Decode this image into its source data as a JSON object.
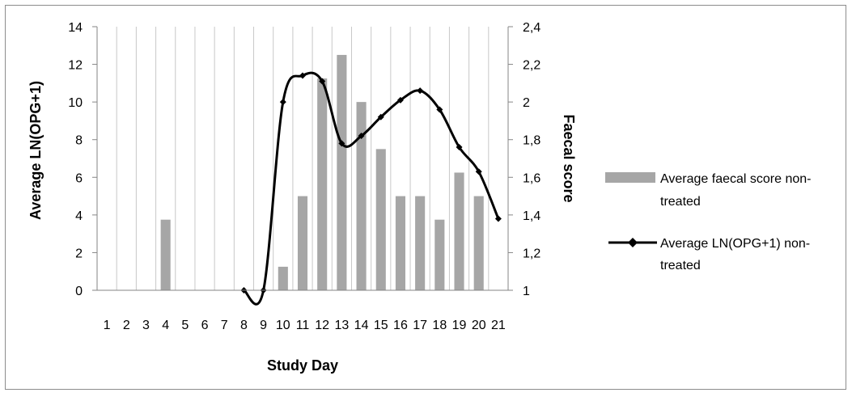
{
  "chart_data": {
    "type": "bar+line",
    "title": "",
    "categories": [
      "1",
      "2",
      "3",
      "4",
      "5",
      "6",
      "7",
      "8",
      "9",
      "10",
      "11",
      "12",
      "13",
      "14",
      "15",
      "16",
      "17",
      "18",
      "19",
      "20",
      "21"
    ],
    "xlabel": "Study Day",
    "ylabel_left": "Average LN(OPG+1)",
    "ylabel_right": "Faecal score",
    "ylim_left": [
      0,
      14
    ],
    "yticks_left": [
      "0",
      "2",
      "4",
      "6",
      "8",
      "10",
      "12",
      "14"
    ],
    "ylim_right": [
      1,
      2.4
    ],
    "yticks_right": [
      "1",
      "1,2",
      "1,4",
      "1,6",
      "1,8",
      "2",
      "2,2",
      "2,4"
    ],
    "grid": "vertical",
    "legend_position": "right",
    "series": [
      {
        "name": "Average faecal score non-treated",
        "kind": "bar",
        "axis": "right",
        "color": "#a6a6a6",
        "values": [
          1,
          1,
          1,
          1.375,
          1,
          1,
          1,
          1,
          1,
          1.125,
          1.5,
          2.125,
          2.25,
          2,
          1.75,
          1.5,
          1.5,
          1.375,
          1.625,
          1.5,
          null
        ]
      },
      {
        "name": "Average LN(OPG+1) non-treated",
        "kind": "line",
        "axis": "left",
        "color": "#000000",
        "smooth": true,
        "start_index": 7,
        "values": [
          null,
          null,
          null,
          null,
          null,
          null,
          null,
          0,
          0,
          10,
          11.4,
          11.1,
          7.8,
          8.2,
          9.2,
          10.1,
          10.6,
          9.6,
          7.6,
          6.3,
          3.8
        ]
      }
    ]
  },
  "legend": {
    "bar_lines": [
      "Average faecal score non-",
      "treated"
    ],
    "line_lines": [
      "Average LN(OPG+1) non-",
      "treated"
    ]
  }
}
